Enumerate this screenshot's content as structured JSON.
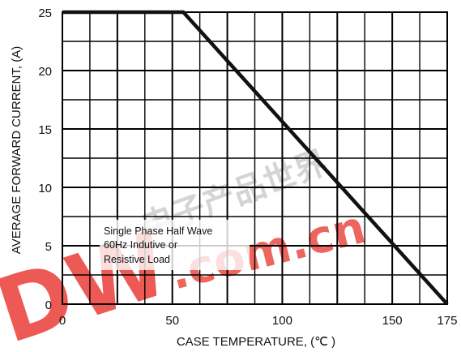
{
  "chart_data": {
    "type": "line",
    "title": "",
    "xlabel": "CASE TEMPERATURE, (℃ )",
    "ylabel": "AVERAGE FORWARD CURRENT, (A)",
    "xlim": [
      0,
      175
    ],
    "ylim": [
      0,
      25
    ],
    "x_ticks": [
      "0",
      "50",
      "100",
      "150",
      "175"
    ],
    "y_ticks": [
      "0",
      "5",
      "10",
      "15",
      "20",
      "25"
    ],
    "grid": true,
    "series": [
      {
        "x": [
          0,
          55,
          175
        ],
        "y": [
          25,
          25,
          0
        ]
      }
    ],
    "annotations": [
      "Single Phase Half Wave",
      "60Hz Indutive or",
      "Resistive Load"
    ],
    "colors": {
      "line": "#111111",
      "grid": "#000000",
      "watermark": "#e8312a"
    }
  },
  "watermark": {
    "text": ".com.cn",
    "logo": "DW",
    "chinese": "电子产品世界"
  }
}
